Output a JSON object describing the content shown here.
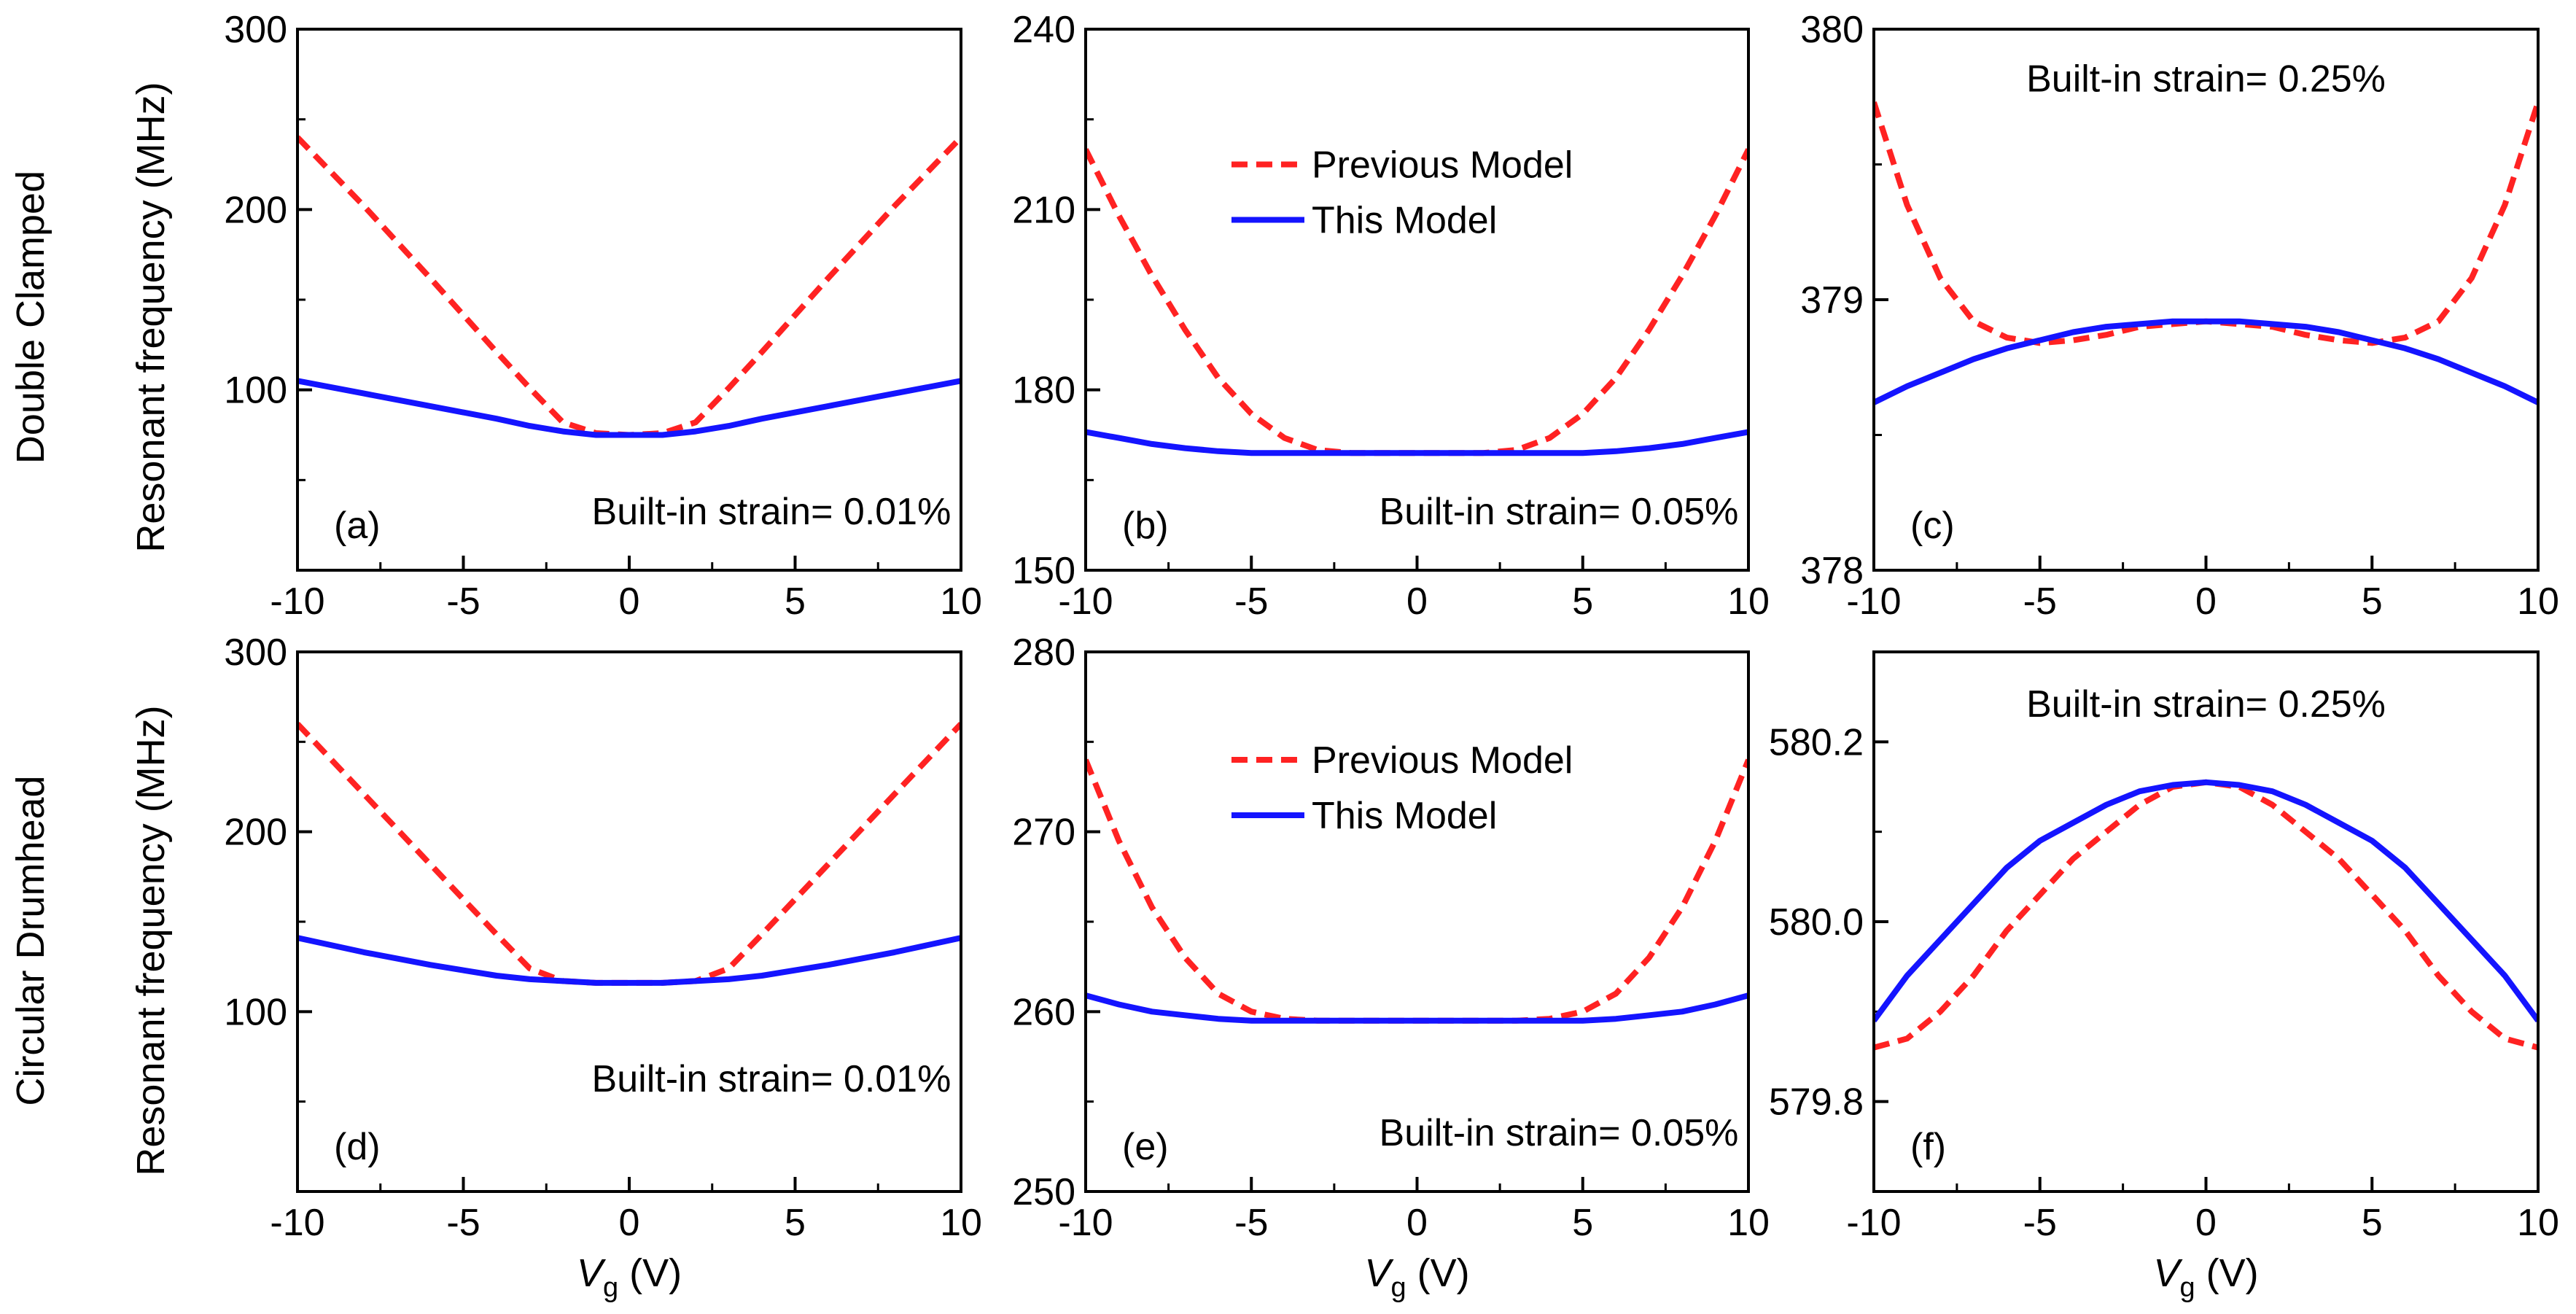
{
  "colors": {
    "previous_model": "#ff2222",
    "this_model": "#1414ff",
    "axes": "#000000",
    "background": "#ffffff"
  },
  "row_labels": [
    "Double Clamped",
    "Circular Drumhead"
  ],
  "y_axis_label": "Resonant frequency (MHz)",
  "x_axis_label": {
    "symbol": "V",
    "subscript": "g",
    "unit": " (V)"
  },
  "legend": {
    "previous": "Previous Model",
    "current": "This Model"
  },
  "chart_data": [
    {
      "type": "line",
      "panel": "(a)",
      "annotation": "Built-in strain= 0.01%",
      "xlim": [
        -10,
        10
      ],
      "ylim": [
        0,
        300
      ],
      "x_ticks": [
        -10,
        -5,
        0,
        5,
        10
      ],
      "x_tick_labels": [
        "-10",
        "-5",
        "0",
        "5",
        "10"
      ],
      "y_ticks": [
        100,
        200,
        300
      ],
      "y_tick_labels": [
        "100",
        "200",
        "300"
      ],
      "x": [
        -10,
        -8,
        -6,
        -4,
        -3,
        -2,
        -1,
        0,
        1,
        2,
        3,
        4,
        6,
        8,
        10
      ],
      "series": [
        {
          "name": "Previous Model",
          "style": "dashed",
          "values": [
            240,
            202,
            162,
            121,
            101,
            82,
            76,
            75,
            76,
            82,
            101,
            121,
            162,
            202,
            240
          ]
        },
        {
          "name": "This Model",
          "style": "solid",
          "values": [
            105,
            98,
            91,
            84,
            80,
            77,
            75,
            75,
            75,
            77,
            80,
            84,
            91,
            98,
            105
          ]
        }
      ]
    },
    {
      "type": "line",
      "panel": "(b)",
      "annotation": "Built-in strain= 0.05%",
      "xlim": [
        -10,
        10
      ],
      "ylim": [
        150,
        240
      ],
      "x_ticks": [
        -10,
        -5,
        0,
        5,
        10
      ],
      "x_tick_labels": [
        "-10",
        "-5",
        "0",
        "5",
        "10"
      ],
      "y_ticks": [
        150,
        180,
        210,
        240
      ],
      "y_tick_labels": [
        "150",
        "180",
        "210",
        "240"
      ],
      "x": [
        -10,
        -9,
        -8,
        -7,
        -6,
        -5,
        -4,
        -3,
        -2,
        -1,
        0,
        1,
        2,
        3,
        4,
        5,
        6,
        7,
        8,
        9,
        10
      ],
      "series": [
        {
          "name": "Previous Model",
          "style": "dashed",
          "values": [
            220,
            209,
            199,
            190,
            182,
            176,
            172,
            170,
            169.5,
            169.5,
            169.5,
            169.5,
            169.5,
            170,
            172,
            176,
            182,
            190,
            199,
            209,
            220
          ]
        },
        {
          "name": "This Model",
          "style": "solid",
          "values": [
            173,
            172,
            171,
            170.3,
            169.8,
            169.5,
            169.5,
            169.5,
            169.5,
            169.5,
            169.5,
            169.5,
            169.5,
            169.5,
            169.5,
            169.5,
            169.8,
            170.3,
            171,
            172,
            173
          ]
        }
      ]
    },
    {
      "type": "line",
      "panel": "(c)",
      "annotation": "Built-in strain= 0.25%",
      "xlim": [
        -10,
        10
      ],
      "ylim": [
        378,
        380
      ],
      "x_ticks": [
        -10,
        -5,
        0,
        5,
        10
      ],
      "x_tick_labels": [
        "-10",
        "-5",
        "0",
        "5",
        "10"
      ],
      "y_ticks": [
        378,
        379,
        380
      ],
      "y_tick_labels": [
        "378",
        "379",
        "380"
      ],
      "x": [
        -10,
        -9,
        -8,
        -7,
        -6,
        -5,
        -4,
        -3,
        -2,
        -1,
        0,
        1,
        2,
        3,
        4,
        5,
        6,
        7,
        8,
        9,
        10
      ],
      "series": [
        {
          "name": "Previous Model",
          "style": "dashed",
          "values": [
            379.73,
            379.35,
            379.08,
            378.92,
            378.86,
            378.84,
            378.85,
            378.87,
            378.9,
            378.91,
            378.92,
            378.91,
            378.9,
            378.87,
            378.85,
            378.84,
            378.86,
            378.92,
            379.08,
            379.35,
            379.73
          ]
        },
        {
          "name": "This Model",
          "style": "solid",
          "values": [
            378.62,
            378.68,
            378.73,
            378.78,
            378.82,
            378.85,
            378.88,
            378.9,
            378.91,
            378.92,
            378.92,
            378.92,
            378.91,
            378.9,
            378.88,
            378.85,
            378.82,
            378.78,
            378.73,
            378.68,
            378.62
          ]
        }
      ]
    },
    {
      "type": "line",
      "panel": "(d)",
      "annotation": "Built-in strain= 0.01%",
      "xlim": [
        -10,
        10
      ],
      "ylim": [
        0,
        300
      ],
      "x_ticks": [
        -10,
        -5,
        0,
        5,
        10
      ],
      "x_tick_labels": [
        "-10",
        "-5",
        "0",
        "5",
        "10"
      ],
      "y_ticks": [
        100,
        200,
        300
      ],
      "y_tick_labels": [
        "100",
        "200",
        "300"
      ],
      "x": [
        -10,
        -8,
        -6,
        -4,
        -3,
        -2,
        -1,
        0,
        1,
        2,
        3,
        4,
        6,
        8,
        10
      ],
      "series": [
        {
          "name": "Previous Model",
          "style": "dashed",
          "values": [
            260,
            221,
            182,
            143,
            124,
            117,
            116,
            116,
            116,
            117,
            124,
            143,
            182,
            221,
            260
          ]
        },
        {
          "name": "This Model",
          "style": "solid",
          "values": [
            141,
            133,
            126,
            120,
            118,
            117,
            116,
            116,
            116,
            117,
            118,
            120,
            126,
            133,
            141
          ]
        }
      ]
    },
    {
      "type": "line",
      "panel": "(e)",
      "annotation": "Built-in strain= 0.05%",
      "xlim": [
        -10,
        10
      ],
      "ylim": [
        250,
        280
      ],
      "x_ticks": [
        -10,
        -5,
        0,
        5,
        10
      ],
      "x_tick_labels": [
        "-10",
        "-5",
        "0",
        "5",
        "10"
      ],
      "y_ticks": [
        250,
        260,
        270,
        280
      ],
      "y_tick_labels": [
        "250",
        "260",
        "270",
        "280"
      ],
      "x": [
        -10,
        -9,
        -8,
        -7,
        -6,
        -5,
        -4,
        -3,
        -2,
        -1,
        0,
        1,
        2,
        3,
        4,
        5,
        6,
        7,
        8,
        9,
        10
      ],
      "series": [
        {
          "name": "Previous Model",
          "style": "dashed",
          "values": [
            274,
            269.5,
            265.8,
            263,
            261,
            260,
            259.6,
            259.5,
            259.5,
            259.5,
            259.5,
            259.5,
            259.5,
            259.5,
            259.6,
            260,
            261,
            263,
            265.8,
            269.5,
            274
          ]
        },
        {
          "name": "This Model",
          "style": "solid",
          "values": [
            260.9,
            260.4,
            260,
            259.8,
            259.6,
            259.5,
            259.5,
            259.5,
            259.5,
            259.5,
            259.5,
            259.5,
            259.5,
            259.5,
            259.5,
            259.5,
            259.6,
            259.8,
            260,
            260.4,
            260.9
          ]
        }
      ]
    },
    {
      "type": "line",
      "panel": "(f)",
      "annotation": "Built-in strain= 0.25%",
      "xlim": [
        -10,
        10
      ],
      "ylim": [
        579.7,
        580.3
      ],
      "x_ticks": [
        -10,
        -5,
        0,
        5,
        10
      ],
      "x_tick_labels": [
        "-10",
        "-5",
        "0",
        "5",
        "10"
      ],
      "y_ticks": [
        579.8,
        580.0,
        580.2
      ],
      "y_tick_labels": [
        "579.8",
        "580.0",
        "580.2"
      ],
      "x": [
        -10,
        -9,
        -8,
        -7,
        -6,
        -5,
        -4,
        -3,
        -2,
        -1,
        0,
        1,
        2,
        3,
        4,
        5,
        6,
        7,
        8,
        9,
        10
      ],
      "series": [
        {
          "name": "Previous Model",
          "style": "dashed",
          "values": [
            579.86,
            579.87,
            579.9,
            579.94,
            579.99,
            580.03,
            580.07,
            580.1,
            580.13,
            580.15,
            580.155,
            580.15,
            580.13,
            580.1,
            580.07,
            580.03,
            579.99,
            579.94,
            579.9,
            579.87,
            579.86
          ]
        },
        {
          "name": "This Model",
          "style": "solid",
          "values": [
            579.89,
            579.94,
            579.98,
            580.02,
            580.06,
            580.09,
            580.11,
            580.13,
            580.145,
            580.152,
            580.155,
            580.152,
            580.145,
            580.13,
            580.11,
            580.09,
            580.06,
            580.02,
            579.98,
            579.94,
            579.89
          ]
        }
      ]
    }
  ]
}
